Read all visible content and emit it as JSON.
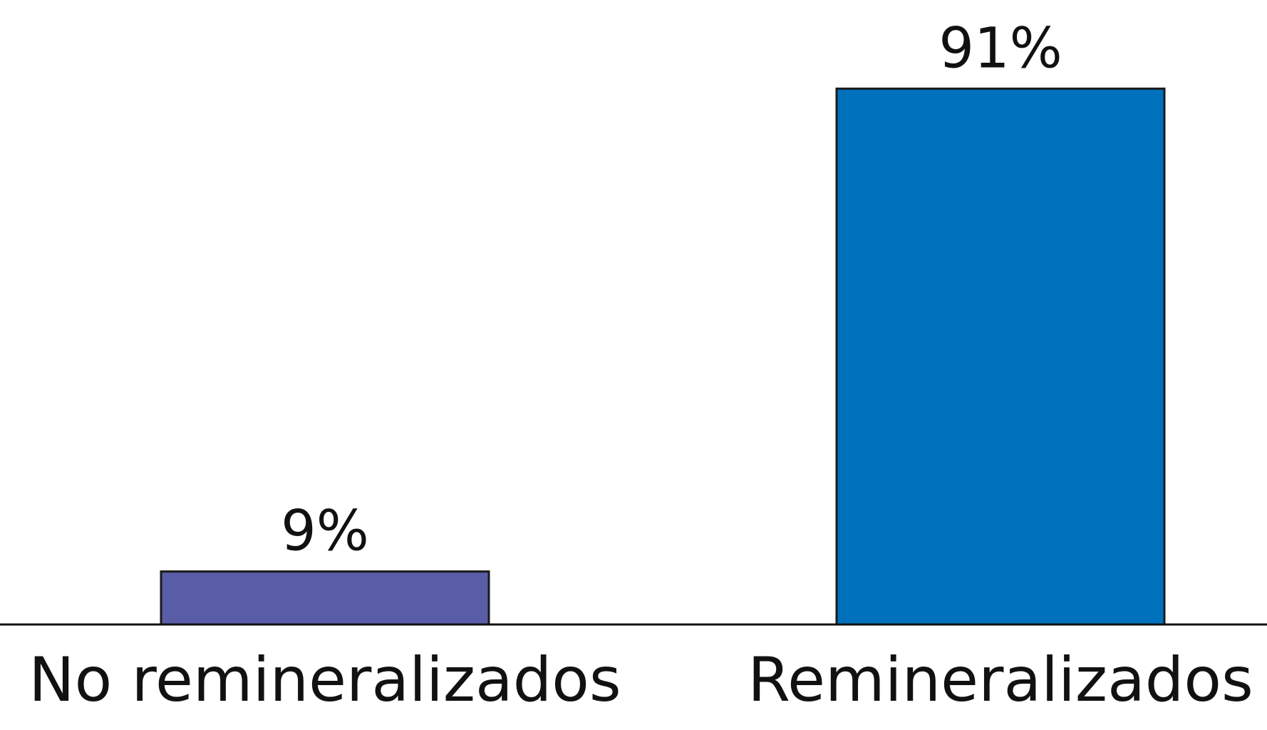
{
  "chart_data": {
    "type": "bar",
    "title": "",
    "xlabel": "",
    "ylabel": "",
    "categories": [
      "No remineralizados",
      "Remineralizados"
    ],
    "values": [
      9,
      91
    ],
    "value_labels": [
      "9%",
      "91%"
    ],
    "unit": "%",
    "ylim": [
      0,
      100
    ],
    "grid": false,
    "legend": "none",
    "colors": [
      "#595ca7",
      "#0071bc"
    ],
    "baseline_color": "#111111",
    "bar_border_color": "#1a1a1a"
  }
}
